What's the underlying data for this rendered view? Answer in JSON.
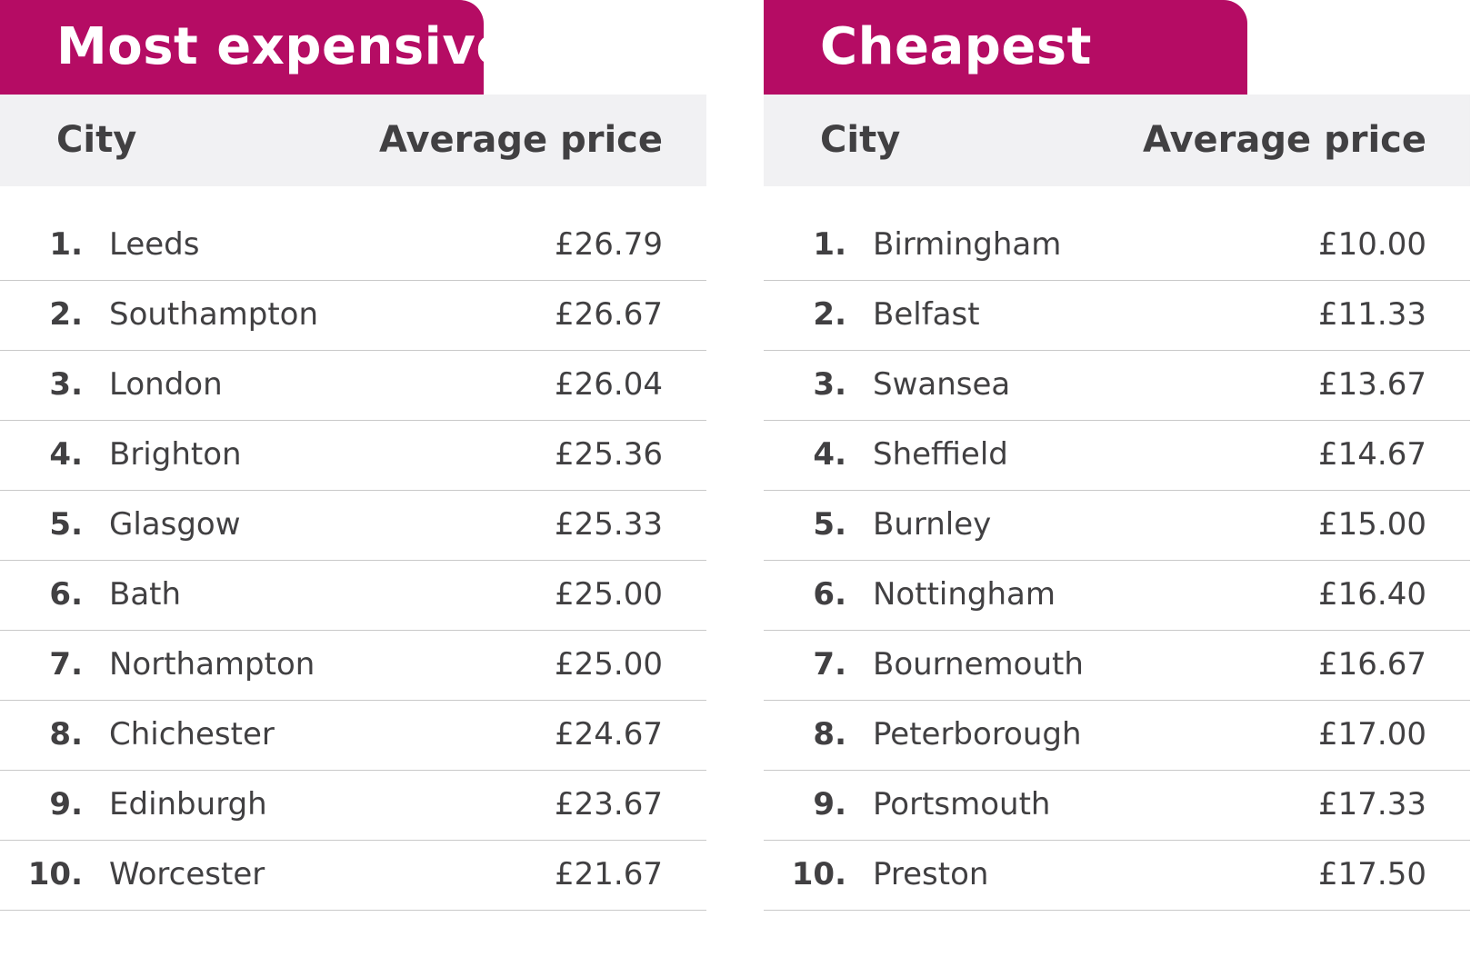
{
  "chart_data": [
    {
      "type": "table",
      "title": "Most expensive",
      "columns": [
        "City",
        "Average price"
      ],
      "rows": [
        {
          "rank": "1.",
          "city": "Leeds",
          "price": "£26.79",
          "value": 26.79
        },
        {
          "rank": "2.",
          "city": "Southampton",
          "price": "£26.67",
          "value": 26.67
        },
        {
          "rank": "3.",
          "city": "London",
          "price": "£26.04",
          "value": 26.04
        },
        {
          "rank": "4.",
          "city": "Brighton",
          "price": "£25.36",
          "value": 25.36
        },
        {
          "rank": "5.",
          "city": "Glasgow",
          "price": "£25.33",
          "value": 25.33
        },
        {
          "rank": "6.",
          "city": "Bath",
          "price": "£25.00",
          "value": 25.0
        },
        {
          "rank": "7.",
          "city": "Northampton",
          "price": "£25.00",
          "value": 25.0
        },
        {
          "rank": "8.",
          "city": "Chichester",
          "price": "£24.67",
          "value": 24.67
        },
        {
          "rank": "9.",
          "city": "Edinburgh",
          "price": "£23.67",
          "value": 23.67
        },
        {
          "rank": "10.",
          "city": "Worcester",
          "price": "£21.67",
          "value": 21.67
        }
      ]
    },
    {
      "type": "table",
      "title": "Cheapest",
      "columns": [
        "City",
        "Average price"
      ],
      "rows": [
        {
          "rank": "1.",
          "city": "Birmingham",
          "price": "£10.00",
          "value": 10.0
        },
        {
          "rank": "2.",
          "city": "Belfast",
          "price": "£11.33",
          "value": 11.33
        },
        {
          "rank": "3.",
          "city": "Swansea",
          "price": "£13.67",
          "value": 13.67
        },
        {
          "rank": "4.",
          "city": "Sheffield",
          "price": "£14.67",
          "value": 14.67
        },
        {
          "rank": "5.",
          "city": "Burnley",
          "price": "£15.00",
          "value": 15.0
        },
        {
          "rank": "6.",
          "city": "Nottingham",
          "price": "£16.40",
          "value": 16.4
        },
        {
          "rank": "7.",
          "city": "Bournemouth",
          "price": "£16.67",
          "value": 16.67
        },
        {
          "rank": "8.",
          "city": "Peterborough",
          "price": "£17.00",
          "value": 17.0
        },
        {
          "rank": "9.",
          "city": "Portsmouth",
          "price": "£17.33",
          "value": 17.33
        },
        {
          "rank": "10.",
          "city": "Preston",
          "price": "£17.50",
          "value": 17.5
        }
      ]
    }
  ],
  "colors": {
    "tab_background": "#b50c64",
    "tab_text": "#ffffff",
    "header_background": "#f1f1f3",
    "text": "#414042",
    "divider": "#c9c9c9"
  }
}
